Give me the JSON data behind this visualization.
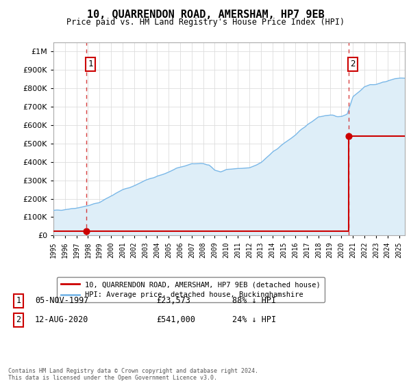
{
  "title": "10, QUARRENDON ROAD, AMERSHAM, HP7 9EB",
  "subtitle": "Price paid vs. HM Land Registry's House Price Index (HPI)",
  "legend_line1": "10, QUARRENDON ROAD, AMERSHAM, HP7 9EB (detached house)",
  "legend_line2": "HPI: Average price, detached house, Buckinghamshire",
  "annotation1_label": "1",
  "annotation1_date": "05-NOV-1997",
  "annotation1_price": "£23,573",
  "annotation1_hpi": "88% ↓ HPI",
  "annotation2_label": "2",
  "annotation2_date": "12-AUG-2020",
  "annotation2_price": "£541,000",
  "annotation2_hpi": "24% ↓ HPI",
  "footer": "Contains HM Land Registry data © Crown copyright and database right 2024.\nThis data is licensed under the Open Government Licence v3.0.",
  "hpi_color": "#7ab8e8",
  "hpi_fill_color": "#deeef8",
  "price_color": "#cc0000",
  "vline_color": "#cc0000",
  "sale1_year": 1997.85,
  "sale1_price": 23573,
  "sale2_year": 2020.62,
  "sale2_price": 541000,
  "ylim_max": 1050000,
  "xlim_min": 1995,
  "xlim_max": 2025.5,
  "hpi_knots": [
    1995,
    1996,
    1997,
    1998,
    1999,
    2000,
    2001,
    2002,
    2003,
    2004,
    2005,
    2006,
    2007,
    2008,
    2008.5,
    2009,
    2009.5,
    2010,
    2011,
    2012,
    2013,
    2014,
    2015,
    2016,
    2017,
    2018,
    2019,
    2019.5,
    2020,
    2020.5,
    2021,
    2021.5,
    2022,
    2022.5,
    2023,
    2023.5,
    2024,
    2024.5,
    2025
  ],
  "hpi_vals": [
    135000,
    142000,
    150000,
    162000,
    180000,
    215000,
    248000,
    270000,
    300000,
    320000,
    345000,
    370000,
    390000,
    390000,
    385000,
    355000,
    345000,
    358000,
    362000,
    368000,
    395000,
    450000,
    500000,
    545000,
    600000,
    645000,
    655000,
    648000,
    645000,
    660000,
    755000,
    780000,
    810000,
    820000,
    820000,
    830000,
    840000,
    848000,
    855000
  ]
}
